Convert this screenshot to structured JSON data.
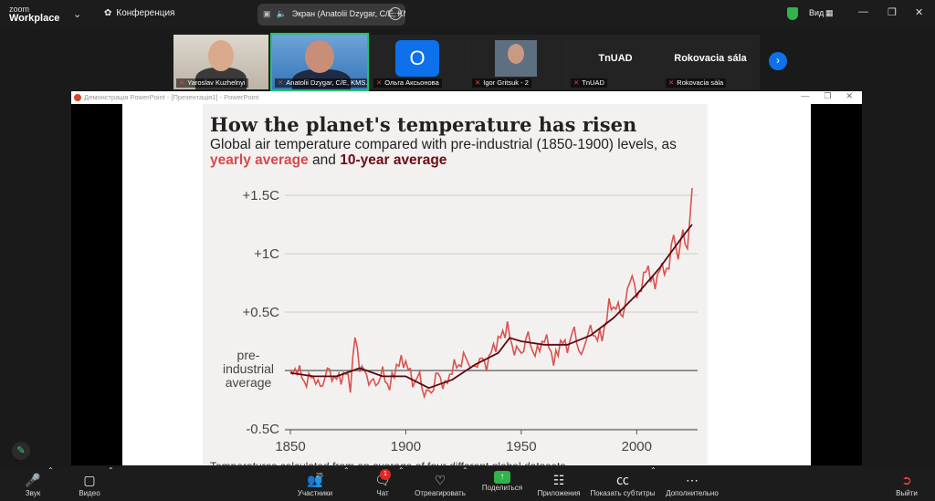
{
  "app": {
    "logo_top": "zoom",
    "logo_bottom": "Workplace",
    "conference_label": "Конференция",
    "share_tab_label": "Экран (Anatolii Dzygar, C/E, KMS...",
    "view_label": "Вид"
  },
  "participants": [
    {
      "name": "Yaroslav Kuzhelnyi"
    },
    {
      "name": "Anatolii Dzygar, C/E, KMS..."
    },
    {
      "name": "Ольга Аксьонова",
      "avatar_letter": "O"
    },
    {
      "name": "Igor Gritsuk - 2"
    },
    {
      "name": "TnUAD",
      "tile_text": "TnUAD"
    },
    {
      "name": "Rokovacia sála",
      "tile_text": "Rokovacia sála"
    }
  ],
  "ppt": {
    "window_title": "Демонстрація PowerPoint - [Презентація1] - PowerPoint"
  },
  "chart_data": {
    "type": "line",
    "title": "How the planet's temperature has risen",
    "subtitle_prefix": "Global air temperature compared with pre-industrial (1850-1900) levels, as ",
    "subtitle_series1": "yearly average",
    "subtitle_and": " and ",
    "subtitle_series2": "10-year average",
    "baseline_label": [
      "pre-",
      "industrial",
      "average"
    ],
    "y_ticks": [
      "+1.5C",
      "+1C",
      "+0.5C",
      "-0.5C"
    ],
    "x_ticks": [
      "1850",
      "1900",
      "1950",
      "2000"
    ],
    "xlim": [
      1850,
      2024
    ],
    "ylim": [
      -0.5,
      1.5
    ],
    "series_colors": {
      "yearly": "#d9534f",
      "decade": "#5c0a10"
    },
    "footnote": "Temperatures calculated from an average of four different global datasets",
    "yearly_anchor_points": [
      [
        1850,
        -0.05
      ],
      [
        1853,
        0.03
      ],
      [
        1856,
        -0.1
      ],
      [
        1860,
        -0.05
      ],
      [
        1863,
        -0.15
      ],
      [
        1866,
        0.0
      ],
      [
        1870,
        -0.08
      ],
      [
        1874,
        -0.03
      ],
      [
        1876,
        -0.12
      ],
      [
        1878,
        0.28
      ],
      [
        1880,
        0.05
      ],
      [
        1884,
        -0.08
      ],
      [
        1887,
        -0.12
      ],
      [
        1890,
        -0.02
      ],
      [
        1893,
        -0.15
      ],
      [
        1896,
        0.05
      ],
      [
        1900,
        0.08
      ],
      [
        1903,
        -0.1
      ],
      [
        1906,
        -0.05
      ],
      [
        1908,
        -0.2
      ],
      [
        1911,
        -0.18
      ],
      [
        1914,
        -0.02
      ],
      [
        1917,
        -0.15
      ],
      [
        1920,
        0.02
      ],
      [
        1923,
        0.05
      ],
      [
        1926,
        0.12
      ],
      [
        1929,
        0.0
      ],
      [
        1932,
        0.1
      ],
      [
        1935,
        0.05
      ],
      [
        1938,
        0.2
      ],
      [
        1941,
        0.28
      ],
      [
        1944,
        0.38
      ],
      [
        1946,
        0.2
      ],
      [
        1950,
        0.15
      ],
      [
        1953,
        0.3
      ],
      [
        1956,
        0.12
      ],
      [
        1959,
        0.25
      ],
      [
        1962,
        0.25
      ],
      [
        1964,
        0.05
      ],
      [
        1967,
        0.25
      ],
      [
        1970,
        0.2
      ],
      [
        1973,
        0.35
      ],
      [
        1976,
        0.1
      ],
      [
        1979,
        0.35
      ],
      [
        1982,
        0.3
      ],
      [
        1985,
        0.28
      ],
      [
        1988,
        0.55
      ],
      [
        1991,
        0.55
      ],
      [
        1994,
        0.48
      ],
      [
        1998,
        0.85
      ],
      [
        2000,
        0.6
      ],
      [
        2003,
        0.8
      ],
      [
        2005,
        0.88
      ],
      [
        2008,
        0.7
      ],
      [
        2010,
        0.92
      ],
      [
        2012,
        0.82
      ],
      [
        2014,
        0.92
      ],
      [
        2016,
        1.15
      ],
      [
        2018,
        0.98
      ],
      [
        2020,
        1.18
      ],
      [
        2022,
        1.05
      ],
      [
        2024,
        1.52
      ]
    ],
    "decade_anchor_points": [
      [
        1850,
        -0.02
      ],
      [
        1860,
        -0.05
      ],
      [
        1870,
        -0.05
      ],
      [
        1880,
        0.02
      ],
      [
        1890,
        -0.05
      ],
      [
        1900,
        -0.05
      ],
      [
        1910,
        -0.15
      ],
      [
        1920,
        -0.08
      ],
      [
        1930,
        0.05
      ],
      [
        1940,
        0.15
      ],
      [
        1945,
        0.28
      ],
      [
        1950,
        0.25
      ],
      [
        1960,
        0.22
      ],
      [
        1970,
        0.22
      ],
      [
        1980,
        0.3
      ],
      [
        1990,
        0.45
      ],
      [
        2000,
        0.65
      ],
      [
        2010,
        0.88
      ],
      [
        2020,
        1.15
      ],
      [
        2024,
        1.25
      ]
    ]
  },
  "toolbar": {
    "audio": "Звук",
    "video": "Видео",
    "participants": "Участники",
    "participants_count": "25",
    "chat": "Чат",
    "chat_badge": "1",
    "react": "Отреагировать",
    "share": "Поделиться",
    "apps": "Приложения",
    "captions": "Показать субтитры",
    "more": "Дополнительно",
    "leave": "Выйти"
  }
}
